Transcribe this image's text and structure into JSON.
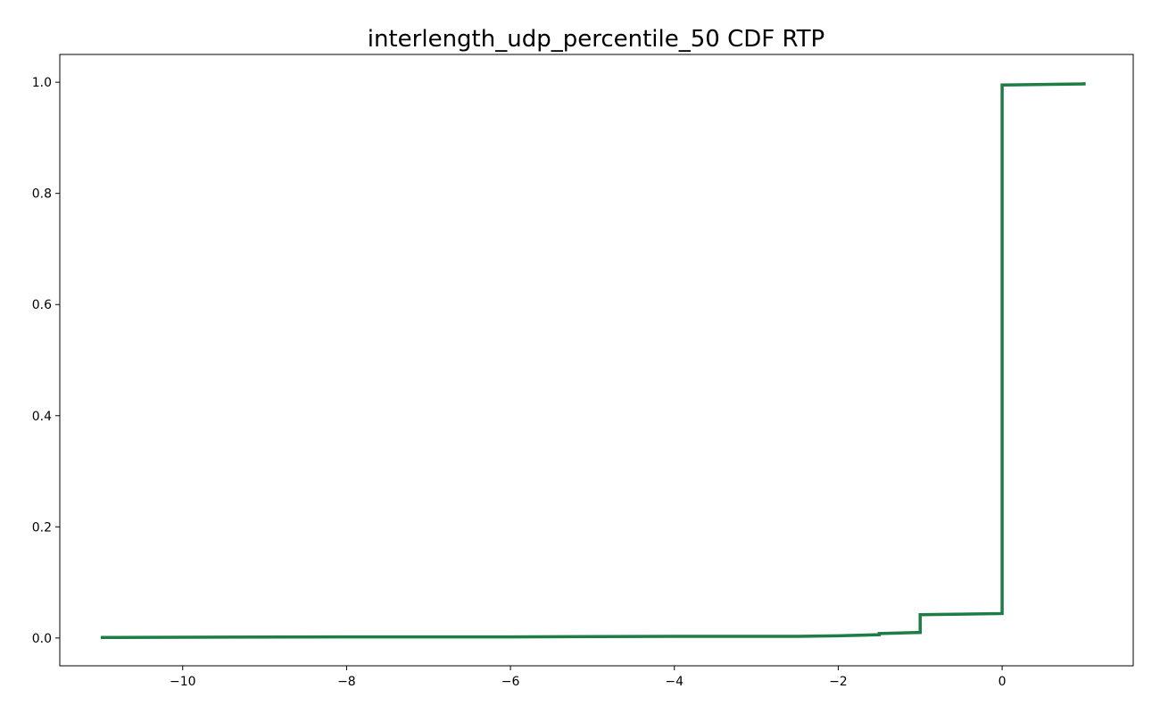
{
  "chart_data": {
    "type": "line",
    "title": "interlength_udp_percentile_50 CDF RTP",
    "xlabel": "",
    "ylabel": "",
    "xlim": [
      -11.5,
      1.6
    ],
    "ylim": [
      -0.05,
      1.05
    ],
    "x_ticks": [
      -10,
      -8,
      -6,
      -4,
      -2,
      0
    ],
    "x_tick_labels": [
      "−10",
      "−8",
      "−6",
      "−4",
      "−2",
      "0"
    ],
    "y_ticks": [
      0.0,
      0.2,
      0.4,
      0.6,
      0.8,
      1.0
    ],
    "y_tick_labels": [
      "0.0",
      "0.2",
      "0.4",
      "0.6",
      "0.8",
      "1.0"
    ],
    "grid": false,
    "legend": "none",
    "series": [
      {
        "color": "#1e7d45",
        "x": [
          -11.0,
          -8.0,
          -6.0,
          -4.0,
          -2.5,
          -2.0,
          -1.5,
          -1.5,
          -1.0,
          -1.0,
          -0.5,
          0.0,
          0.0,
          0.5,
          1.0,
          1.0
        ],
        "y": [
          0.001,
          0.002,
          0.002,
          0.003,
          0.003,
          0.004,
          0.006,
          0.008,
          0.01,
          0.042,
          0.043,
          0.044,
          0.995,
          0.996,
          0.997,
          1.0
        ]
      }
    ]
  }
}
